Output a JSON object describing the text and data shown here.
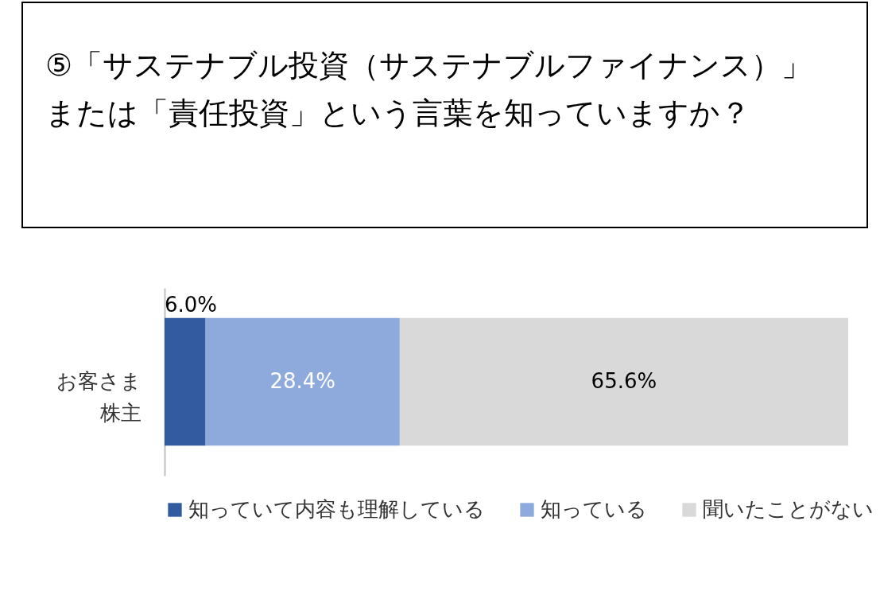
{
  "chart_data": {
    "type": "bar",
    "title": "⑤「サステナブル投資（サステナブルファイナンス）」または「責任投資」という言葉を知っていますか？",
    "orientation": "horizontal",
    "stacked": true,
    "categories": [
      "お客さま株主"
    ],
    "series": [
      {
        "name": "知っていて内容も理解している",
        "color": "#335ca0",
        "values": [
          6.0
        ],
        "value_labels": [
          "6.0%"
        ]
      },
      {
        "name": "知っている",
        "color": "#8eaadc",
        "values": [
          28.4
        ],
        "value_labels": [
          "28.4%"
        ]
      },
      {
        "name": "聞いたことがない",
        "color": "#d9d9d9",
        "values": [
          65.6
        ],
        "value_labels": [
          "65.6%"
        ]
      }
    ],
    "legend": "bottom"
  }
}
